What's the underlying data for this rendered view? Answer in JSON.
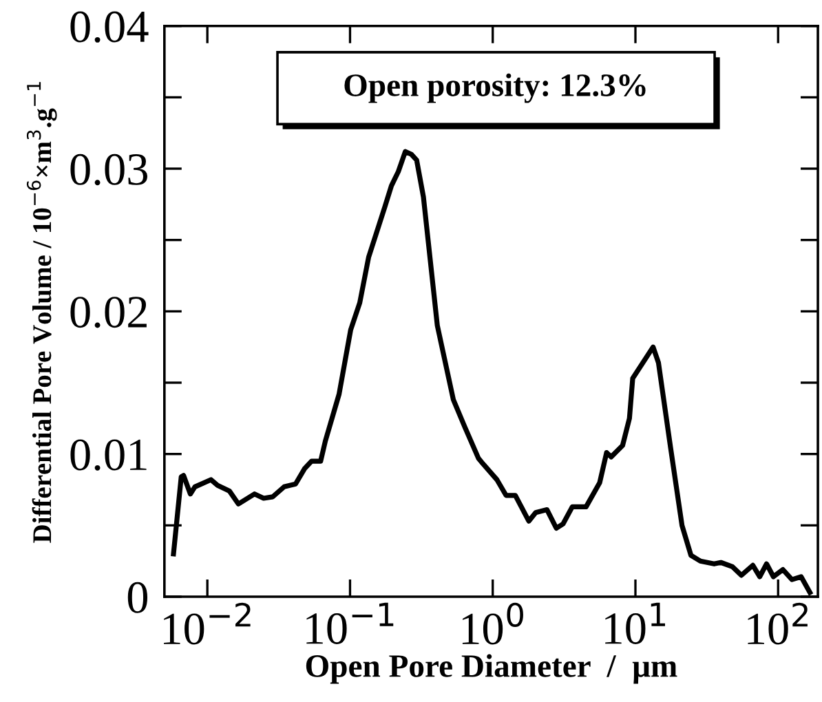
{
  "chart_data": {
    "type": "line",
    "xlabel": "Open Pore Diameter  /  μm",
    "ylabel": "Differential Pore Volume / 10$^{−6}$×m$^{3}$.g$^{−1}$",
    "annotations": [
      "Open porosity: 12.3%"
    ],
    "log": "x",
    "xlim": [
      0.005,
      190
    ],
    "xticks": [
      {
        "value": 0.01,
        "label": "10$^{−2}$"
      },
      {
        "value": 0.1,
        "label": "10$^{−1}$"
      },
      {
        "value": 1,
        "label": "10$^{0}$"
      },
      {
        "value": 10,
        "label": "10$^{1}$"
      },
      {
        "value": 100,
        "label": "10$^{2}$"
      }
    ],
    "ylim": [
      0,
      0.04
    ],
    "yticks": [
      0,
      {
        "value": 0.005,
        "label": null
      },
      0.01,
      {
        "value": 0.015,
        "label": null
      },
      0.02,
      {
        "value": 0.025,
        "label": null
      },
      0.03,
      {
        "value": 0.035,
        "label": null
      },
      0.04
    ],
    "grid": false,
    "legend": false,
    "marker": "none",
    "line_style": "solid",
    "series": [
      {
        "color": "#000000",
        "x": [
          0.00579,
          0.00656,
          0.00681,
          0.0076,
          0.00818,
          0.0106,
          0.0118,
          0.0143,
          0.0165,
          0.0214,
          0.0248,
          0.0287,
          0.0345,
          0.0415,
          0.0482,
          0.0538,
          0.0622,
          0.0671,
          0.0838,
          0.101,
          0.117,
          0.135,
          0.175,
          0.195,
          0.218,
          0.244,
          0.269,
          0.293,
          0.327,
          0.409,
          0.53,
          0.637,
          0.794,
          0.857,
          1.07,
          1.24,
          1.44,
          1.79,
          2.0,
          2.4,
          2.79,
          3.11,
          3.61,
          4.51,
          5.62,
          6.28,
          6.76,
          8.13,
          9.08,
          9.57,
          13.3,
          14.5,
          17.6,
          21.2,
          24.5,
          28.5,
          35.6,
          39.7,
          47.8,
          55.3,
          66.5,
          74.3,
          83.0,
          92.7,
          108,
          125,
          145,
          167
        ],
        "values": [
          0.003,
          0.0084,
          0.0085,
          0.0072,
          0.0077,
          0.0082,
          0.0078,
          0.0074,
          0.0065,
          0.0072,
          0.0069,
          0.007,
          0.0077,
          0.0079,
          0.009,
          0.0095,
          0.0095,
          0.0109,
          0.0142,
          0.0187,
          0.0206,
          0.0238,
          0.0273,
          0.0288,
          0.0298,
          0.0312,
          0.031,
          0.0306,
          0.028,
          0.019,
          0.0138,
          0.0119,
          0.0097,
          0.0093,
          0.0082,
          0.0071,
          0.0071,
          0.0053,
          0.0059,
          0.0061,
          0.0048,
          0.0051,
          0.0063,
          0.0063,
          0.008,
          0.0101,
          0.0098,
          0.0106,
          0.0125,
          0.0153,
          0.0175,
          0.0164,
          0.0105,
          0.005,
          0.0029,
          0.0025,
          0.0023,
          0.0024,
          0.0021,
          0.0015,
          0.0022,
          0.0014,
          0.0023,
          0.0014,
          0.0019,
          0.0012,
          0.0014,
          0.0003
        ]
      }
    ]
  }
}
